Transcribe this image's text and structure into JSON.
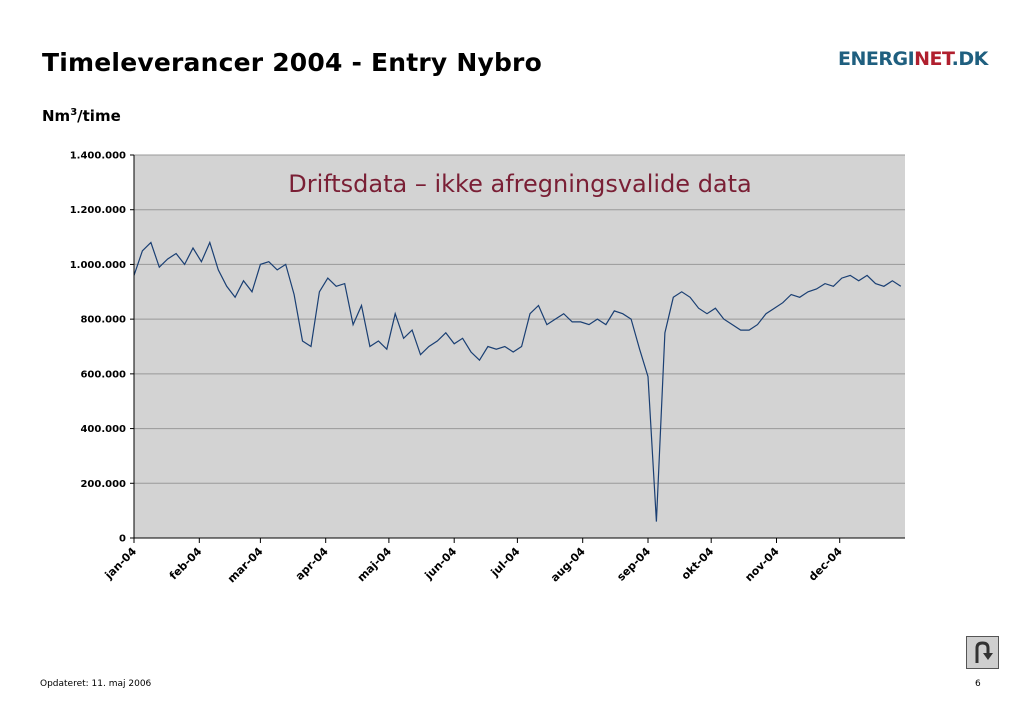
{
  "slide": {
    "title": "Timeleverancer 2004 - Entry Nybro",
    "unit_prefix": "Nm",
    "unit_sup": "3",
    "unit_suffix": "/time",
    "footer": "Opdateret: 11. maj 2006",
    "page_number": "6"
  },
  "logo": {
    "part1": "ENERGI",
    "part2": "NET",
    "part3": ".DK"
  },
  "nav": {
    "back_icon": "u-turn-arrow-icon"
  },
  "colors": {
    "series": "#1a3f73",
    "plot_bg": "#d3d3d3",
    "annotation": "#7a1f35"
  },
  "chart_data": {
    "type": "line",
    "annotation": "Driftsdata – ikke afregningsvalide data",
    "ylim": [
      0,
      1400000
    ],
    "y_ticks": [
      "0",
      "200.000",
      "400.000",
      "600.000",
      "800.000",
      "1.000.000",
      "1.200.000",
      "1.400.000"
    ],
    "y_tick_values": [
      0,
      200000,
      400000,
      600000,
      800000,
      1000000,
      1200000,
      1400000
    ],
    "x_ticks": [
      "jan-04",
      "feb-04",
      "mar-04",
      "apr-04",
      "maj-04",
      "jun-04",
      "jul-04",
      "aug-04",
      "sep-04",
      "okt-04",
      "nov-04",
      "dec-04"
    ],
    "x_tick_days": [
      1,
      32,
      61,
      92,
      122,
      153,
      183,
      214,
      245,
      275,
      306,
      336
    ],
    "xlim": [
      1,
      367
    ],
    "grid": true,
    "x": [
      1,
      5,
      9,
      13,
      17,
      21,
      25,
      29,
      33,
      37,
      41,
      45,
      49,
      53,
      57,
      61,
      65,
      69,
      73,
      77,
      81,
      85,
      89,
      93,
      97,
      101,
      105,
      109,
      113,
      117,
      121,
      125,
      129,
      133,
      137,
      141,
      145,
      149,
      153,
      157,
      161,
      165,
      169,
      173,
      177,
      181,
      185,
      189,
      193,
      197,
      201,
      205,
      209,
      213,
      217,
      221,
      225,
      229,
      233,
      237,
      241,
      245,
      249,
      253,
      257,
      261,
      265,
      269,
      273,
      277,
      281,
      285,
      289,
      293,
      297,
      301,
      305,
      309,
      313,
      317,
      321,
      325,
      329,
      333,
      337,
      341,
      345,
      349,
      353,
      357,
      361,
      365
    ],
    "values": [
      960000,
      1050000,
      1080000,
      990000,
      1020000,
      1040000,
      1000000,
      1060000,
      1010000,
      1080000,
      980000,
      920000,
      880000,
      940000,
      900000,
      1000000,
      1010000,
      980000,
      1000000,
      890000,
      720000,
      700000,
      900000,
      950000,
      920000,
      930000,
      780000,
      850000,
      700000,
      720000,
      690000,
      820000,
      730000,
      760000,
      670000,
      700000,
      720000,
      750000,
      710000,
      730000,
      680000,
      650000,
      700000,
      690000,
      700000,
      680000,
      700000,
      820000,
      850000,
      780000,
      800000,
      820000,
      790000,
      790000,
      780000,
      800000,
      780000,
      830000,
      820000,
      800000,
      690000,
      590000,
      60000,
      750000,
      880000,
      900000,
      880000,
      840000,
      820000,
      840000,
      800000,
      780000,
      760000,
      760000,
      780000,
      820000,
      840000,
      860000,
      890000,
      880000,
      900000,
      910000,
      930000,
      920000,
      950000,
      960000,
      940000,
      960000,
      930000,
      920000,
      940000,
      920000
    ]
  }
}
